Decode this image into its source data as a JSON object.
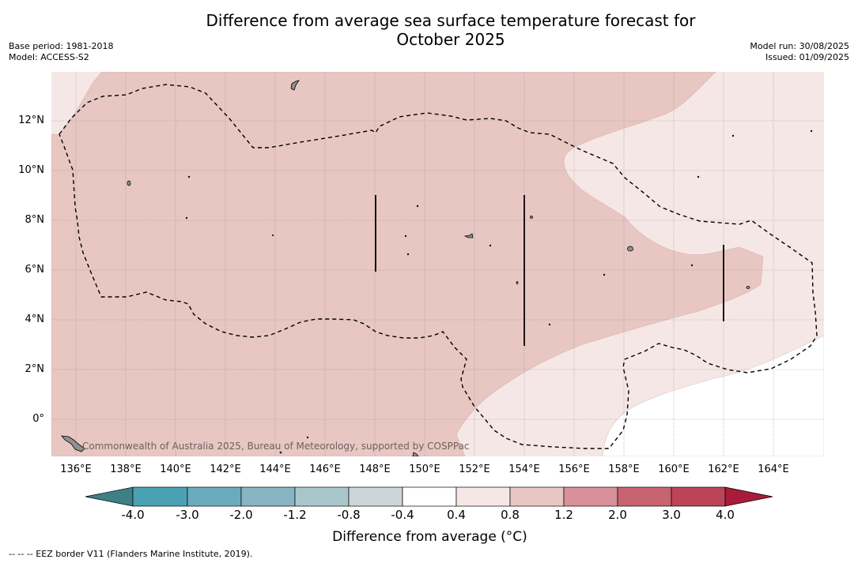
{
  "title_line1": "Difference from average sea surface temperature forecast for",
  "title_line2": "October 2025",
  "base_period": "Base period: 1981-2018",
  "model": "Model: ACCESS-S2",
  "model_run": "Model run: 30/08/2025",
  "issued": "Issued: 01/09/2025",
  "copyright": "Commonwealth of Australia 2025, Bureau of Meteorology, supported by COSPPac",
  "footnote": "-- -- -- EEZ border V11 (Flanders Marine Institute, 2019).",
  "lat_labels": [
    "12°N",
    "10°N",
    "8°N",
    "6°N",
    "4°N",
    "2°N",
    "0°"
  ],
  "lon_labels": [
    "136°E",
    "138°E",
    "140°E",
    "142°E",
    "144°E",
    "146°E",
    "148°E",
    "150°E",
    "152°E",
    "154°E",
    "156°E",
    "158°E",
    "160°E",
    "162°E",
    "164°E"
  ],
  "colorbar": {
    "title": "Difference from average (°C)",
    "tick_labels": [
      "-4.0",
      "-3.0",
      "-2.0",
      "-1.2",
      "-0.8",
      "-0.4",
      "0.4",
      "0.8",
      "1.2",
      "2.0",
      "3.0",
      "4.0"
    ],
    "colors": [
      "#3f7f86",
      "#4aa1b3",
      "#6aacbd",
      "#88b5c2",
      "#a9c7cb",
      "#ccd6d6",
      "#ffffff",
      "#f5e7e5",
      "#e8c7c2",
      "#d8909a",
      "#c7646f",
      "#bd4456",
      "#a81c3a"
    ]
  },
  "map_fill_colors": {
    "anomaly_0_4_to_0_8": "#f5e7e5",
    "anomaly_0_8_to_1_2": "#e8c7c2",
    "land": "#909090"
  }
}
